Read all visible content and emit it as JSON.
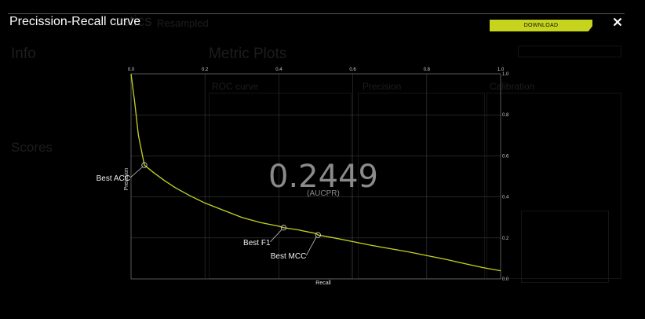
{
  "background": {
    "title_fragment": "ostics",
    "title_suffix": "Resampled",
    "info_heading": "Info",
    "metric_plots_heading": "Metric Plots",
    "scores_heading": "Scores",
    "roc_label": "ROC curve",
    "calibration_label": "Calibration",
    "panel_label": "Precision"
  },
  "modal": {
    "title": "Precission-Recall curve",
    "download_label": "DOWNLOAD",
    "close_icon": "close-icon"
  },
  "chart_data": {
    "type": "line",
    "title": "Precission-Recall curve",
    "xlabel": "Recall",
    "ylabel": "Precision",
    "xlim": [
      0,
      1
    ],
    "ylim": [
      0,
      1
    ],
    "x_ticks": [
      "0.0",
      "0.2",
      "0.4",
      "0.6",
      "0.8",
      "1.0"
    ],
    "y_ticks": [
      "0.0",
      "0.2",
      "0.4",
      "0.6",
      "0.8",
      "1.0"
    ],
    "grid": true,
    "line_color": "#c6d41e",
    "series": [
      {
        "x": [
          0.0,
          0.01,
          0.02,
          0.036,
          0.06,
          0.09,
          0.12,
          0.16,
          0.2,
          0.25,
          0.3,
          0.35,
          0.4,
          0.413,
          0.45,
          0.5,
          0.506,
          0.55,
          0.6,
          0.65,
          0.7,
          0.75,
          0.8,
          0.85,
          0.9,
          0.95,
          1.0
        ],
        "y": [
          1.0,
          0.86,
          0.7,
          0.555,
          0.52,
          0.48,
          0.445,
          0.405,
          0.37,
          0.335,
          0.3,
          0.275,
          0.257,
          0.25,
          0.24,
          0.222,
          0.214,
          0.2,
          0.182,
          0.164,
          0.148,
          0.132,
          0.114,
          0.096,
          0.076,
          0.056,
          0.04
        ]
      }
    ],
    "markers": [
      {
        "label": "Best ACC",
        "x": 0.036,
        "y": 0.555
      },
      {
        "label": "Best F1",
        "x": 0.413,
        "y": 0.25
      },
      {
        "label": "Best MCC",
        "x": 0.506,
        "y": 0.214
      }
    ],
    "aucpr_value": "0.2449",
    "aucpr_label": "(AUCPR)"
  }
}
